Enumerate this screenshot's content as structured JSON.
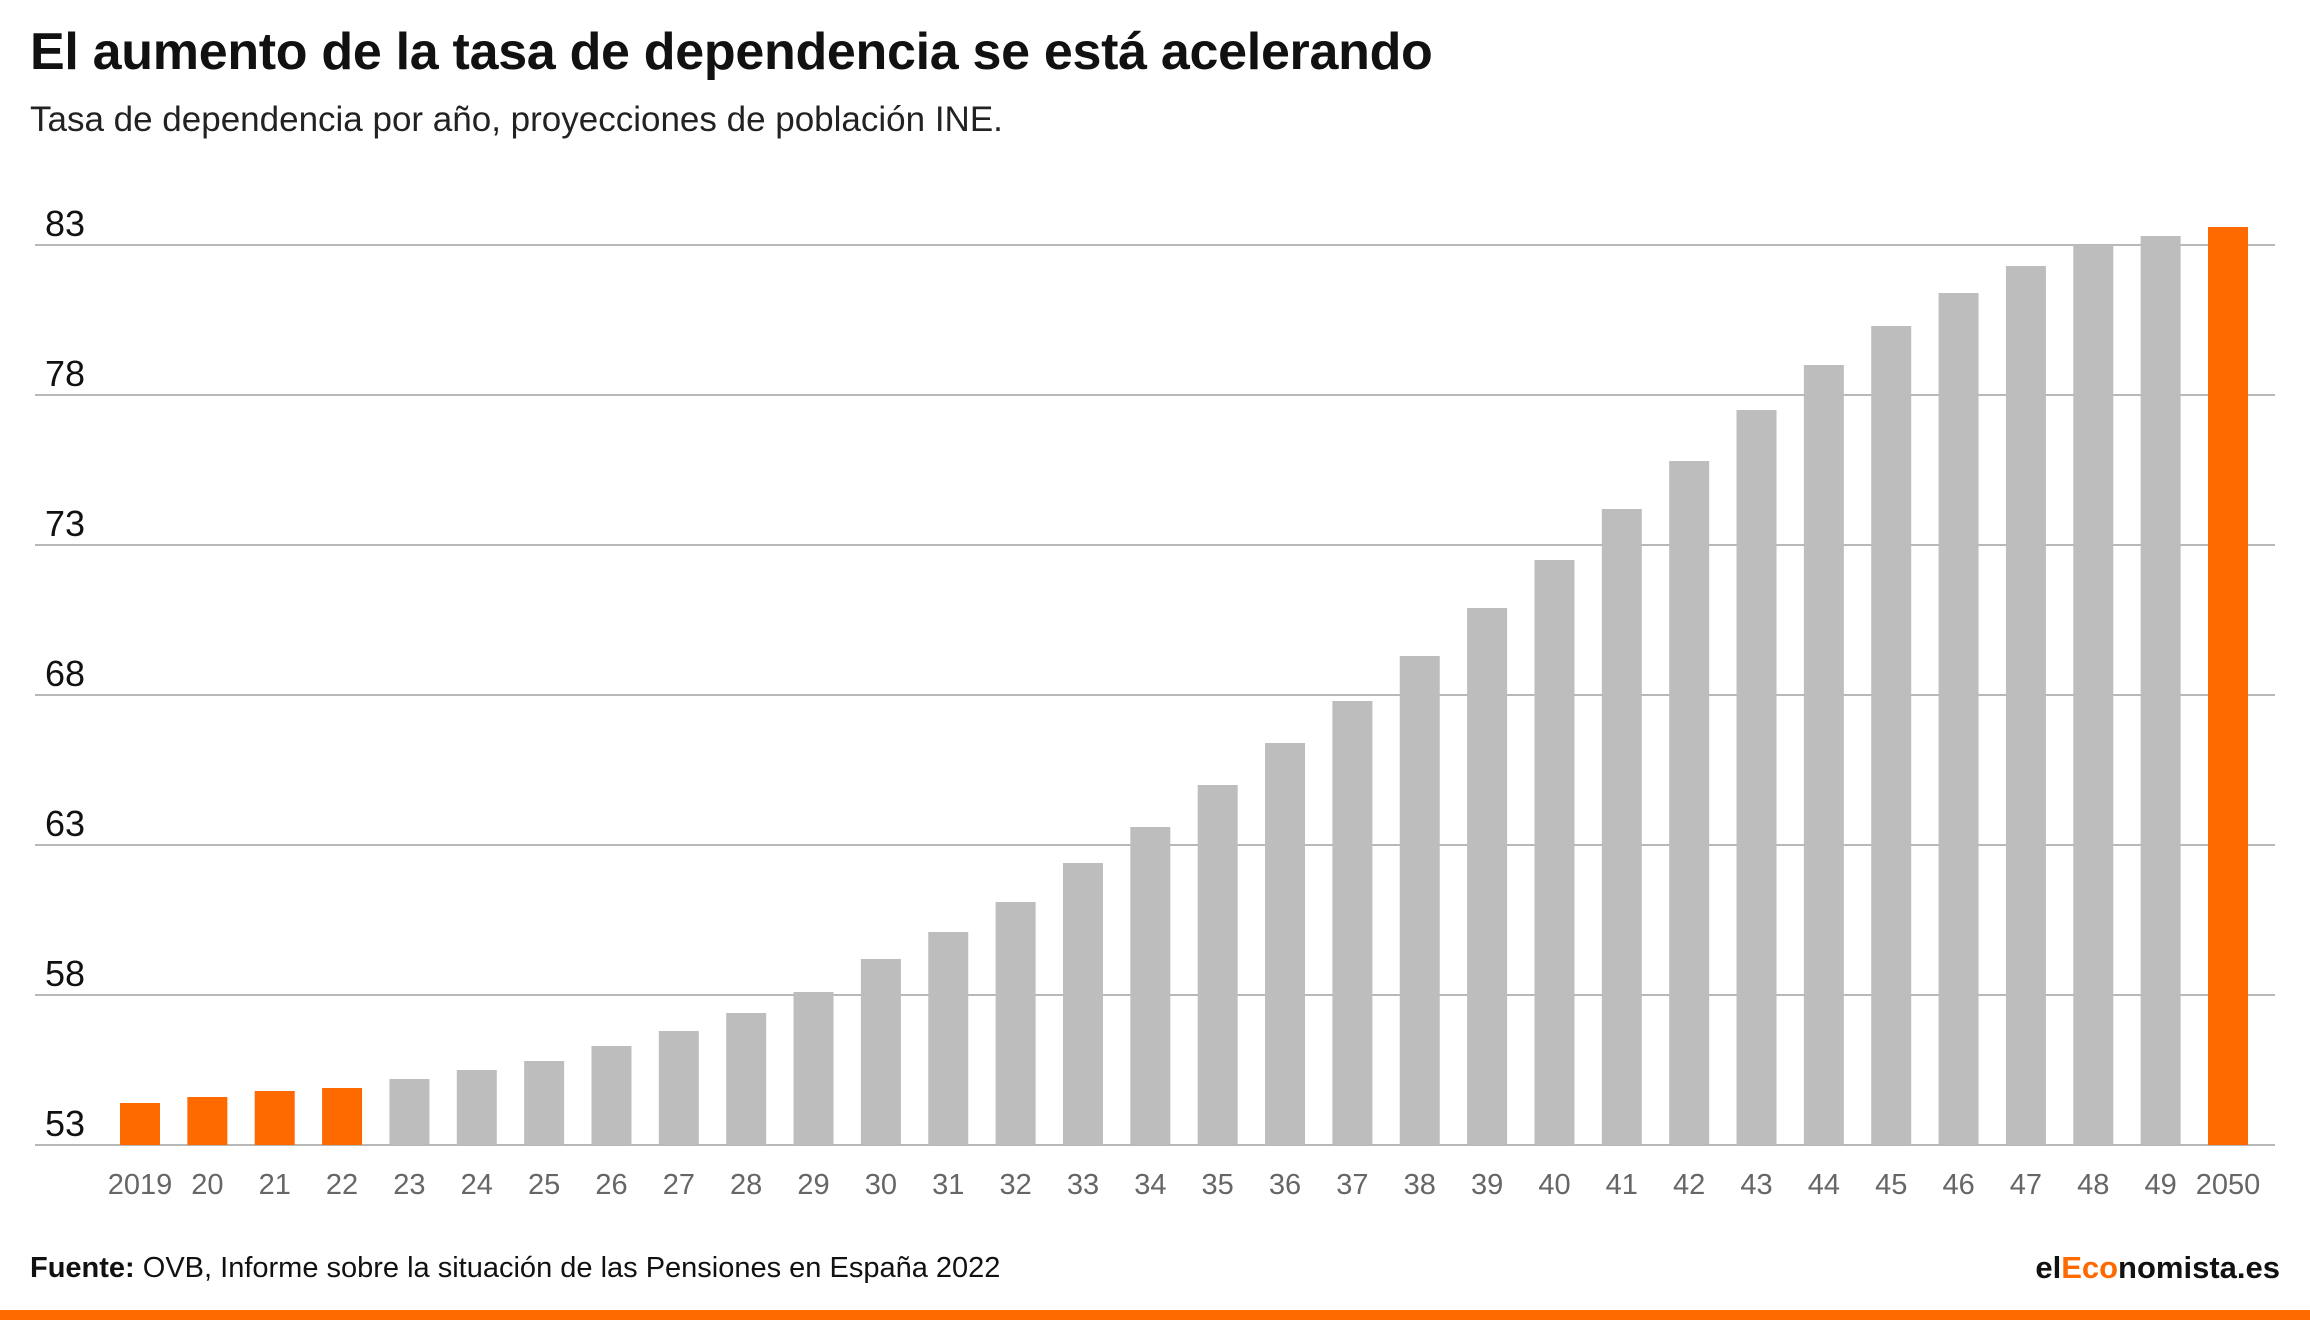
{
  "header": {
    "title": "El aumento de la tasa de dependencia se está acelerando",
    "subtitle": "Tasa de dependencia por año, proyecciones de población INE."
  },
  "footer": {
    "source_label": "Fuente:",
    "source_text": "OVB, Informe sobre la situación de las Pensiones en España 2022",
    "brand_prefix": "el",
    "brand_accent": "Eco",
    "brand_suffix": "nomista.es"
  },
  "colors": {
    "highlight": "#ff6a00",
    "bar": "#bdbdbd",
    "grid": "#b8b8b8",
    "axis_text": "#666666",
    "tick_text": "#111111"
  },
  "chart_data": {
    "type": "bar",
    "title": "El aumento de la tasa de dependencia se está acelerando",
    "subtitle": "Tasa de dependencia por año, proyecciones de población INE.",
    "xlabel": "",
    "ylabel": "",
    "ylim": [
      53,
      83
    ],
    "yticks": [
      53,
      58,
      63,
      68,
      73,
      78,
      83
    ],
    "grid": true,
    "categories": [
      "2019",
      "20",
      "21",
      "22",
      "23",
      "24",
      "25",
      "26",
      "27",
      "28",
      "29",
      "30",
      "31",
      "32",
      "33",
      "34",
      "35",
      "36",
      "37",
      "38",
      "39",
      "40",
      "41",
      "42",
      "43",
      "44",
      "45",
      "46",
      "47",
      "48",
      "49",
      "2050"
    ],
    "values": [
      54.4,
      54.6,
      54.8,
      54.9,
      55.2,
      55.5,
      55.8,
      56.3,
      56.8,
      57.4,
      58.1,
      59.2,
      60.1,
      61.1,
      62.4,
      63.6,
      65.0,
      66.4,
      67.8,
      69.3,
      70.9,
      72.5,
      74.2,
      75.8,
      77.5,
      79.0,
      80.3,
      81.4,
      82.3,
      83.0,
      83.3,
      83.6
    ],
    "highlighted_categories": [
      "2019",
      "20",
      "21",
      "22",
      "2050"
    ]
  }
}
